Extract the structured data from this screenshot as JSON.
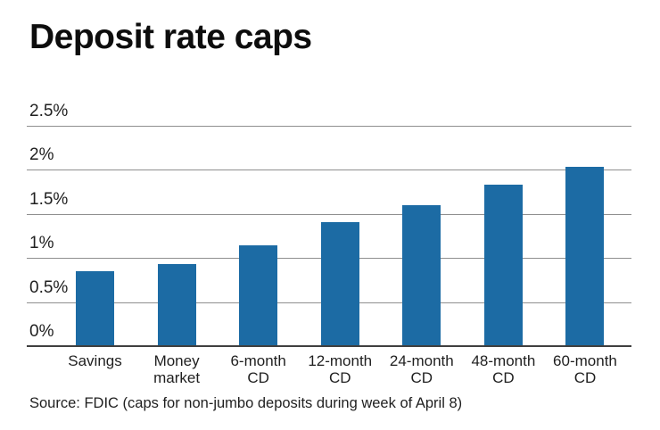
{
  "header": {
    "title": "Deposit rate caps"
  },
  "footer": {
    "source": "Source: FDIC (caps for non-jumbo deposits during week of April 8)"
  },
  "colors": {
    "bar": "#1c6ba4",
    "gridline": "#8f8f8f",
    "baseline": "#3f3f3f",
    "text": "#1f1f1f"
  },
  "chart_data": {
    "type": "bar",
    "title": "Deposit rate caps",
    "categories": [
      "Savings",
      "Money market",
      "6-month CD",
      "12-month CD",
      "24-month CD",
      "48-month CD",
      "60-month CD"
    ],
    "category_lines": [
      [
        "Savings"
      ],
      [
        "Money",
        "market"
      ],
      [
        "6-month",
        "CD"
      ],
      [
        "12-month",
        "CD"
      ],
      [
        "24-month",
        "CD"
      ],
      [
        "48-month",
        "CD"
      ],
      [
        "60-month",
        "CD"
      ]
    ],
    "values": [
      0.85,
      0.93,
      1.14,
      1.41,
      1.6,
      1.83,
      2.03
    ],
    "xlabel": "",
    "ylabel": "",
    "ylim": [
      0,
      2.5
    ],
    "yticks": [
      0,
      0.5,
      1,
      1.5,
      2,
      2.5
    ],
    "ytick_labels": [
      "0%",
      "0.5%",
      "1%",
      "1.5%",
      "2%",
      "2.5%"
    ],
    "grid": true,
    "legend": false
  }
}
